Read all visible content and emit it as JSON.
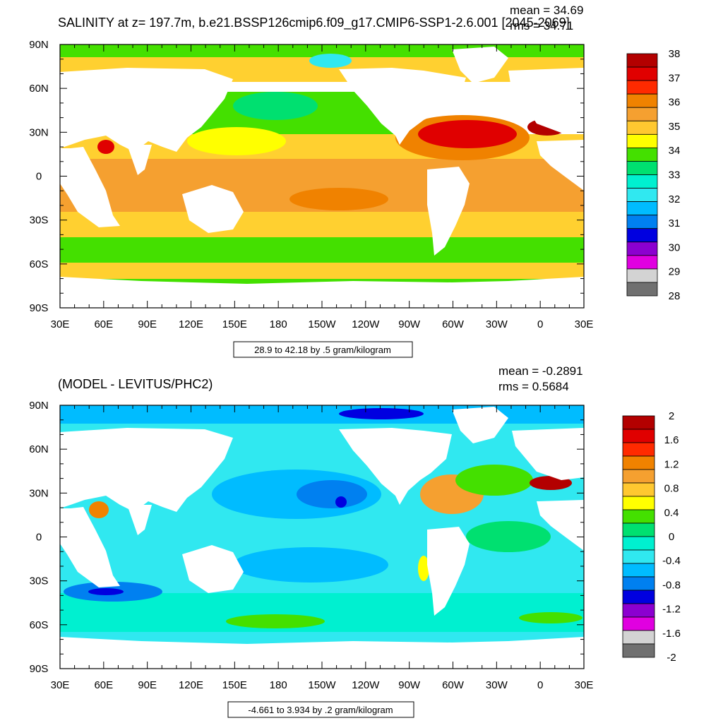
{
  "chart_data": [
    {
      "type": "heatmap",
      "title": "SALINITY at z= 197.7m, b.e21.BSSP126cmip6.f09_g17.CMIP6-SSP1-2.6.001 [2045-2069]",
      "stats": {
        "mean_label": "mean = 34.69",
        "rms_label": "rms = 34.71"
      },
      "xlabels": [
        "30E",
        "60E",
        "90E",
        "120E",
        "150E",
        "180",
        "150W",
        "120W",
        "90W",
        "60W",
        "30W",
        "0",
        "30E"
      ],
      "ylabels": [
        "90N",
        "60N",
        "30N",
        "0",
        "30S",
        "60S",
        "90S"
      ],
      "xlim": [
        30,
        390
      ],
      "ylim": [
        -90,
        90
      ],
      "contour_info": "28.9 to 42.18 by .5 gram/kilogram",
      "colorbar": {
        "labels": [
          "38",
          "37",
          "36",
          "35",
          "34",
          "33",
          "32",
          "31",
          "30",
          "29",
          "28"
        ],
        "colors": [
          "#b30000",
          "#e00000",
          "#ff2a00",
          "#f08200",
          "#f5a030",
          "#ffc830",
          "#ffff00",
          "#44e000",
          "#00e070",
          "#00f0d0",
          "#30e8f0",
          "#00bcff",
          "#0080f0",
          "#0000e0",
          "#8c00d0",
          "#e000e0",
          "#d3d3d3",
          "#707070"
        ]
      }
    },
    {
      "type": "heatmap",
      "title": "(MODEL - LEVITUS/PHC2)",
      "stats": {
        "mean_label": "mean = -0.2891",
        "rms_label": "rms = 0.5684"
      },
      "xlabels": [
        "30E",
        "60E",
        "90E",
        "120E",
        "150E",
        "180",
        "150W",
        "120W",
        "90W",
        "60W",
        "30W",
        "0",
        "30E"
      ],
      "ylabels": [
        "90N",
        "60N",
        "30N",
        "0",
        "30S",
        "60S",
        "90S"
      ],
      "xlim": [
        30,
        390
      ],
      "ylim": [
        -90,
        90
      ],
      "contour_info": "-4.661 to 3.934 by .2 gram/kilogram",
      "colorbar": {
        "labels": [
          "2",
          "1.6",
          "1.2",
          "0.8",
          "0.4",
          "0",
          "-0.4",
          "-0.8",
          "-1.2",
          "-1.6",
          "-2"
        ],
        "colors": [
          "#b30000",
          "#e00000",
          "#ff2a00",
          "#f08200",
          "#f5a030",
          "#ffc830",
          "#ffff00",
          "#44e000",
          "#00e070",
          "#00f0d0",
          "#30e8f0",
          "#00bcff",
          "#0080f0",
          "#0000e0",
          "#8c00d0",
          "#e000e0",
          "#d3d3d3",
          "#707070"
        ]
      }
    }
  ]
}
